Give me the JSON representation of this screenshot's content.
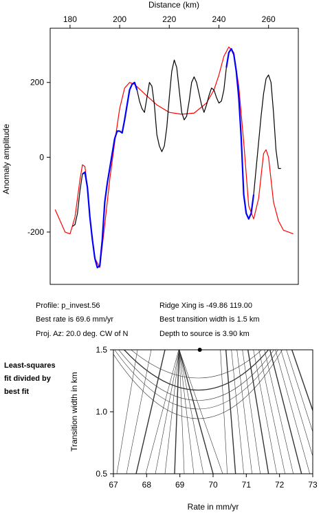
{
  "chart_data": [
    {
      "type": "line",
      "xlabel": "Distance (km)",
      "ylabel": "Anomaly amplitude",
      "xlim": [
        172,
        272
      ],
      "ylim": [
        -340,
        345
      ],
      "xticks": [
        180,
        200,
        220,
        240,
        260
      ],
      "yticks": [
        -200,
        0,
        200
      ],
      "x_axis_position": "top",
      "grid": false,
      "series": [
        {
          "color": "#000000",
          "x": [
            181,
            182,
            183,
            184,
            185,
            186,
            187,
            188,
            189,
            190,
            191,
            192,
            193,
            194,
            195,
            196,
            197,
            198,
            199,
            200,
            201,
            202,
            203,
            204,
            205,
            206,
            207,
            208,
            209,
            210,
            211,
            212,
            213,
            214,
            215,
            216,
            217,
            218,
            219,
            220,
            221,
            222,
            223,
            224,
            225,
            226,
            227,
            228,
            229,
            230,
            231,
            232,
            233,
            234,
            235,
            236,
            237,
            238,
            239,
            240,
            241,
            242,
            243,
            244,
            245,
            246,
            247,
            248,
            249,
            250,
            251,
            252,
            253,
            254,
            255,
            256,
            257,
            258,
            259,
            260,
            261,
            262,
            263,
            264,
            265
          ],
          "values": [
            -185,
            -180,
            -150,
            -90,
            -45,
            -40,
            -80,
            -160,
            -220,
            -270,
            -295,
            -290,
            -220,
            -120,
            -70,
            -30,
            10,
            50,
            70,
            70,
            65,
            100,
            140,
            180,
            195,
            200,
            180,
            150,
            130,
            120,
            160,
            200,
            190,
            140,
            60,
            30,
            15,
            30,
            80,
            160,
            230,
            260,
            240,
            180,
            120,
            100,
            110,
            150,
            200,
            215,
            200,
            170,
            140,
            120,
            140,
            165,
            185,
            180,
            160,
            145,
            150,
            180,
            240,
            280,
            290,
            275,
            230,
            160,
            50,
            -100,
            -150,
            -165,
            -150,
            -100,
            -30,
            40,
            110,
            170,
            210,
            220,
            200,
            120,
            20,
            -30,
            -30
          ]
        },
        {
          "color": "#0000ff",
          "x": [
            185,
            186,
            187,
            188,
            189,
            190,
            191,
            192,
            193,
            194,
            195,
            196,
            197,
            198,
            199,
            200,
            201,
            202,
            203,
            204,
            205,
            206,
            207,
            243,
            244,
            245,
            246,
            247,
            248,
            249,
            250,
            251,
            252,
            253,
            254
          ],
          "values": [
            -45,
            -40,
            -80,
            -160,
            -220,
            -270,
            -295,
            -290,
            -220,
            -120,
            -70,
            -30,
            10,
            50,
            70,
            70,
            65,
            100,
            140,
            180,
            195,
            200,
            180,
            240,
            280,
            290,
            275,
            230,
            160,
            50,
            -100,
            -150,
            -165,
            -150,
            -100
          ]
        },
        {
          "color": "#ff0000",
          "x": [
            174,
            176,
            178,
            180,
            182,
            184,
            185,
            186,
            187,
            188,
            190,
            192,
            194,
            196,
            198,
            200,
            202,
            204,
            206,
            210,
            215,
            220,
            225,
            230,
            235,
            238,
            240,
            242,
            244,
            246,
            248,
            250,
            252,
            254,
            256,
            258,
            259,
            260,
            261,
            262,
            264,
            266,
            268,
            270
          ],
          "values": [
            -140,
            -170,
            -200,
            -205,
            -160,
            -60,
            -20,
            -25,
            -80,
            -160,
            -270,
            -295,
            -180,
            -60,
            40,
            130,
            185,
            200,
            195,
            170,
            140,
            120,
            115,
            118,
            145,
            180,
            220,
            270,
            295,
            280,
            190,
            40,
            -130,
            -165,
            -110,
            10,
            20,
            0,
            -60,
            -120,
            -170,
            -195,
            -200,
            -205
          ]
        }
      ]
    },
    {
      "type": "contour",
      "xlabel": "Rate in mm/yr",
      "ylabel": "Transition width in km",
      "xlim": [
        67,
        73
      ],
      "ylim": [
        0.5,
        1.5
      ],
      "xticks": [
        67,
        68,
        69,
        70,
        71,
        72,
        73
      ],
      "yticks": [
        0.5,
        1.0,
        1.5
      ],
      "best_point": {
        "x": 69.6,
        "y": 1.5
      },
      "legend": "Least-squares fit divided by best fit"
    }
  ],
  "info": {
    "profile": "Profile: p_invest.56",
    "best_rate": "Best rate is 69.6 mm/yr",
    "proj_az": "Proj. Az: 20.0 deg. CW of N",
    "ridge_xing": "Ridge Xing is -49.86 119.00",
    "best_width": "Best transition width is 1.5 km",
    "depth": "Depth to source is   3.90 km"
  },
  "side_label": {
    "line1": "Least-squares",
    "line2": "fit divided by",
    "line3": "best fit"
  },
  "colors": {
    "observed": "#000000",
    "fit_segment": "#0000ff",
    "model": "#ff0000",
    "contour": "#555555"
  }
}
